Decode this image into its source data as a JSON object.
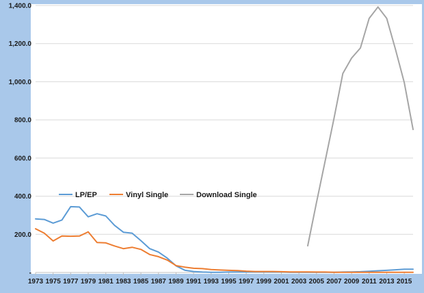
{
  "colors": {
    "background": "#a9c8ea",
    "plot_background": "#ffffff",
    "gridline": "#d9d9d9",
    "axis": "#bfbfbf"
  },
  "chart_data": {
    "type": "line",
    "title": "",
    "xlabel": "",
    "ylabel": "",
    "ylim": [
      0,
      1400
    ],
    "xlim": [
      1973,
      2016
    ],
    "yticks": [
      0,
      200,
      400,
      600,
      800,
      1000,
      1200,
      1400
    ],
    "ytick_labels": [
      "-",
      "200.0",
      "400.0",
      "600.0",
      "800.0",
      "1,000.0",
      "1,200.0",
      "1,400.0"
    ],
    "xtick_labels": [
      "1973",
      "1975",
      "1977",
      "1979",
      "1981",
      "1983",
      "1985",
      "1987",
      "1989",
      "1991",
      "1993",
      "1995",
      "1997",
      "1999",
      "2001",
      "2003",
      "2005",
      "2007",
      "2009",
      "2011",
      "2013",
      "2015"
    ],
    "grid": true,
    "legend_position": "left-middle",
    "series": [
      {
        "name": "LP/EP",
        "color": "#5b9bd5",
        "x": [
          1973,
          1974,
          1975,
          1976,
          1977,
          1978,
          1979,
          1980,
          1981,
          1982,
          1983,
          1984,
          1985,
          1986,
          1987,
          1988,
          1989,
          1990,
          1991,
          1992,
          1993,
          1994,
          1995,
          1996,
          1997,
          1998,
          1999,
          2000,
          2001,
          2002,
          2003,
          2004,
          2005,
          2006,
          2007,
          2008,
          2009,
          2010,
          2011,
          2012,
          2013,
          2014,
          2015,
          2016
        ],
        "values": [
          281,
          278,
          259,
          275,
          345,
          343,
          292,
          308,
          296,
          247,
          211,
          206,
          167,
          125,
          107,
          75,
          35,
          12,
          5,
          2,
          1,
          1,
          2,
          3,
          3,
          3,
          3,
          2,
          2,
          1,
          1,
          1,
          1,
          1,
          1,
          2,
          3,
          4,
          6,
          9,
          11,
          14,
          17,
          17
        ]
      },
      {
        "name": "Vinyl Single",
        "color": "#ed7d31",
        "x": [
          1973,
          1974,
          1975,
          1976,
          1977,
          1978,
          1979,
          1980,
          1981,
          1982,
          1983,
          1984,
          1985,
          1986,
          1987,
          1988,
          1989,
          1990,
          1991,
          1992,
          1993,
          1994,
          1995,
          1996,
          1997,
          1998,
          1999,
          2000,
          2001,
          2002,
          2003,
          2004,
          2005,
          2006,
          2007,
          2008,
          2009,
          2010,
          2011,
          2012,
          2013,
          2014,
          2015,
          2016
        ],
        "values": [
          229,
          206,
          165,
          191,
          190,
          191,
          213,
          157,
          155,
          139,
          125,
          132,
          121,
          94,
          83,
          65,
          36,
          28,
          22,
          20,
          15,
          13,
          11,
          10,
          7,
          5,
          5,
          5,
          4,
          3,
          3,
          3,
          2,
          2,
          1,
          1,
          1,
          1,
          1,
          1,
          1,
          1,
          1,
          1
        ]
      },
      {
        "name": "Download Single",
        "color": "#a5a5a5",
        "x": [
          2004,
          2005,
          2006,
          2007,
          2008,
          2009,
          2010,
          2011,
          2012,
          2013,
          2014,
          2015,
          2016
        ],
        "values": [
          140,
          367,
          587,
          810,
          1043,
          1124,
          1177,
          1332,
          1392,
          1332,
          1170,
          995,
          750
        ]
      }
    ]
  }
}
